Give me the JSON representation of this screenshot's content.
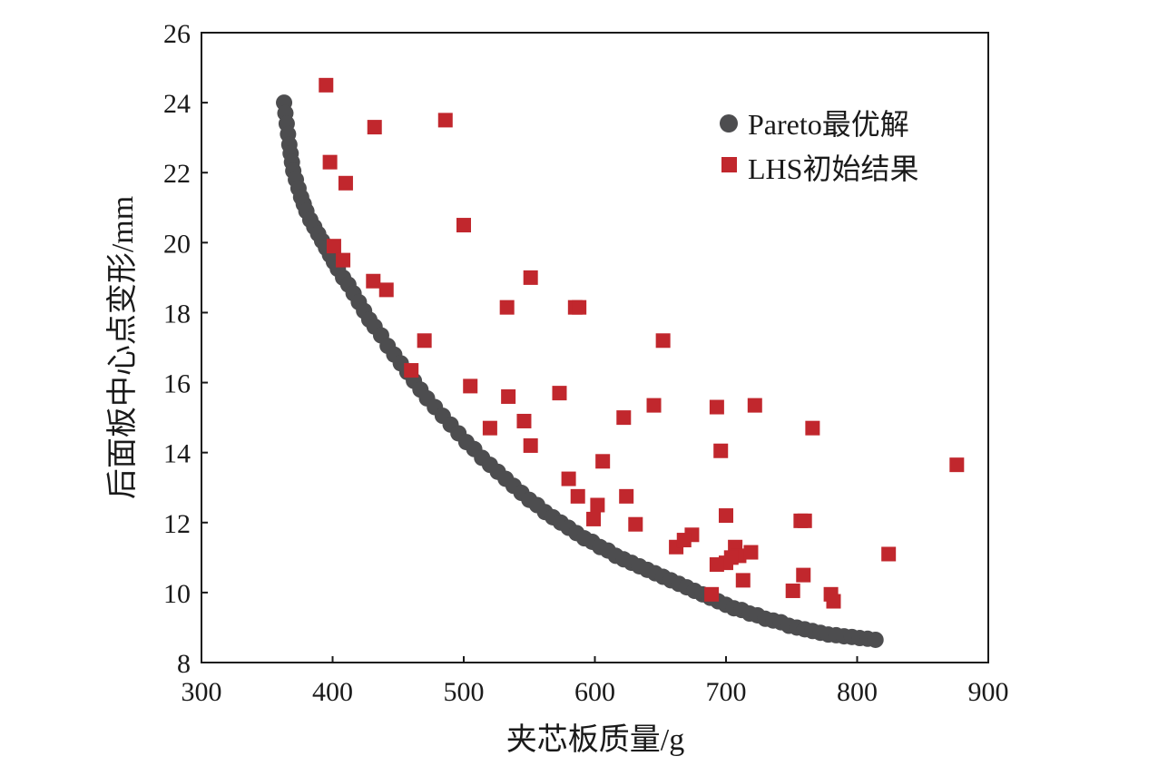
{
  "chart_data": {
    "type": "scatter",
    "title": "",
    "xlabel": "夹芯板质量/g",
    "ylabel": "后面板中心点变形/mm",
    "xlim": [
      300,
      900
    ],
    "ylim": [
      8,
      26
    ],
    "xticks": [
      300,
      400,
      500,
      600,
      700,
      800,
      900
    ],
    "yticks": [
      8,
      10,
      12,
      14,
      16,
      18,
      20,
      22,
      24,
      26
    ],
    "grid": false,
    "legend_position": "top-right",
    "series": [
      {
        "name": "Pareto最优解",
        "marker": "circle",
        "color": "#4d4d4f",
        "x": [
          363,
          364,
          365,
          366,
          367,
          368,
          369,
          370,
          372,
          374,
          376,
          378,
          380,
          383,
          386,
          389,
          392,
          395,
          398,
          401,
          404,
          408,
          412,
          416,
          420,
          424,
          428,
          432,
          437,
          442,
          447,
          452,
          457,
          462,
          467,
          472,
          478,
          484,
          490,
          496,
          502,
          508,
          514,
          520,
          526,
          532,
          538,
          544,
          550,
          556,
          562,
          568,
          574,
          580,
          586,
          592,
          598,
          604,
          610,
          616,
          622,
          628,
          634,
          640,
          646,
          652,
          658,
          664,
          670,
          676,
          682,
          688,
          694,
          700,
          706,
          712,
          718,
          724,
          730,
          736,
          742,
          748,
          754,
          760,
          766,
          772,
          778,
          784,
          790,
          796,
          802,
          808,
          814
        ],
        "y": [
          24.0,
          23.7,
          23.4,
          23.1,
          22.8,
          22.55,
          22.3,
          22.05,
          21.8,
          21.55,
          21.3,
          21.1,
          20.9,
          20.65,
          20.45,
          20.25,
          20.05,
          19.85,
          19.65,
          19.45,
          19.25,
          19.0,
          18.8,
          18.55,
          18.3,
          18.05,
          17.8,
          17.6,
          17.35,
          17.05,
          16.8,
          16.55,
          16.3,
          16.05,
          15.8,
          15.55,
          15.3,
          15.05,
          14.8,
          14.55,
          14.3,
          14.1,
          13.85,
          13.65,
          13.45,
          13.25,
          13.05,
          12.85,
          12.65,
          12.5,
          12.3,
          12.15,
          12.0,
          11.85,
          11.7,
          11.55,
          11.45,
          11.3,
          11.2,
          11.05,
          10.95,
          10.85,
          10.75,
          10.65,
          10.55,
          10.45,
          10.35,
          10.25,
          10.15,
          10.05,
          9.95,
          9.85,
          9.75,
          9.65,
          9.55,
          9.5,
          9.4,
          9.35,
          9.25,
          9.2,
          9.15,
          9.05,
          9.0,
          8.95,
          8.9,
          8.85,
          8.8,
          8.78,
          8.75,
          8.73,
          8.7,
          8.68,
          8.65
        ]
      },
      {
        "name": "LHS初始结果",
        "marker": "square",
        "color": "#c1272d",
        "x": [
          395,
          432,
          486,
          398,
          410,
          500,
          401,
          408,
          431,
          441,
          551,
          533,
          585,
          588,
          470,
          652,
          460,
          505,
          534,
          573,
          520,
          546,
          645,
          693,
          622,
          722,
          766,
          876,
          551,
          696,
          606,
          580,
          587,
          624,
          599,
          602,
          631,
          700,
          757,
          760,
          662,
          674,
          668,
          707,
          710,
          719,
          704,
          700,
          713,
          693,
          689,
          759,
          751,
          780,
          782,
          824
        ],
        "y": [
          24.5,
          23.3,
          23.5,
          22.3,
          21.7,
          20.5,
          19.9,
          19.5,
          18.9,
          18.65,
          19.0,
          18.15,
          18.15,
          18.15,
          17.2,
          17.2,
          16.35,
          15.9,
          15.6,
          15.7,
          14.7,
          14.9,
          15.35,
          15.3,
          15.0,
          15.35,
          14.7,
          13.65,
          14.2,
          14.05,
          13.75,
          13.25,
          12.75,
          12.75,
          12.1,
          12.5,
          11.95,
          12.2,
          12.05,
          12.05,
          11.3,
          11.65,
          11.5,
          11.3,
          11.05,
          11.15,
          11.0,
          10.85,
          10.35,
          10.8,
          9.95,
          10.5,
          10.05,
          9.95,
          9.75,
          11.1
        ]
      }
    ]
  }
}
